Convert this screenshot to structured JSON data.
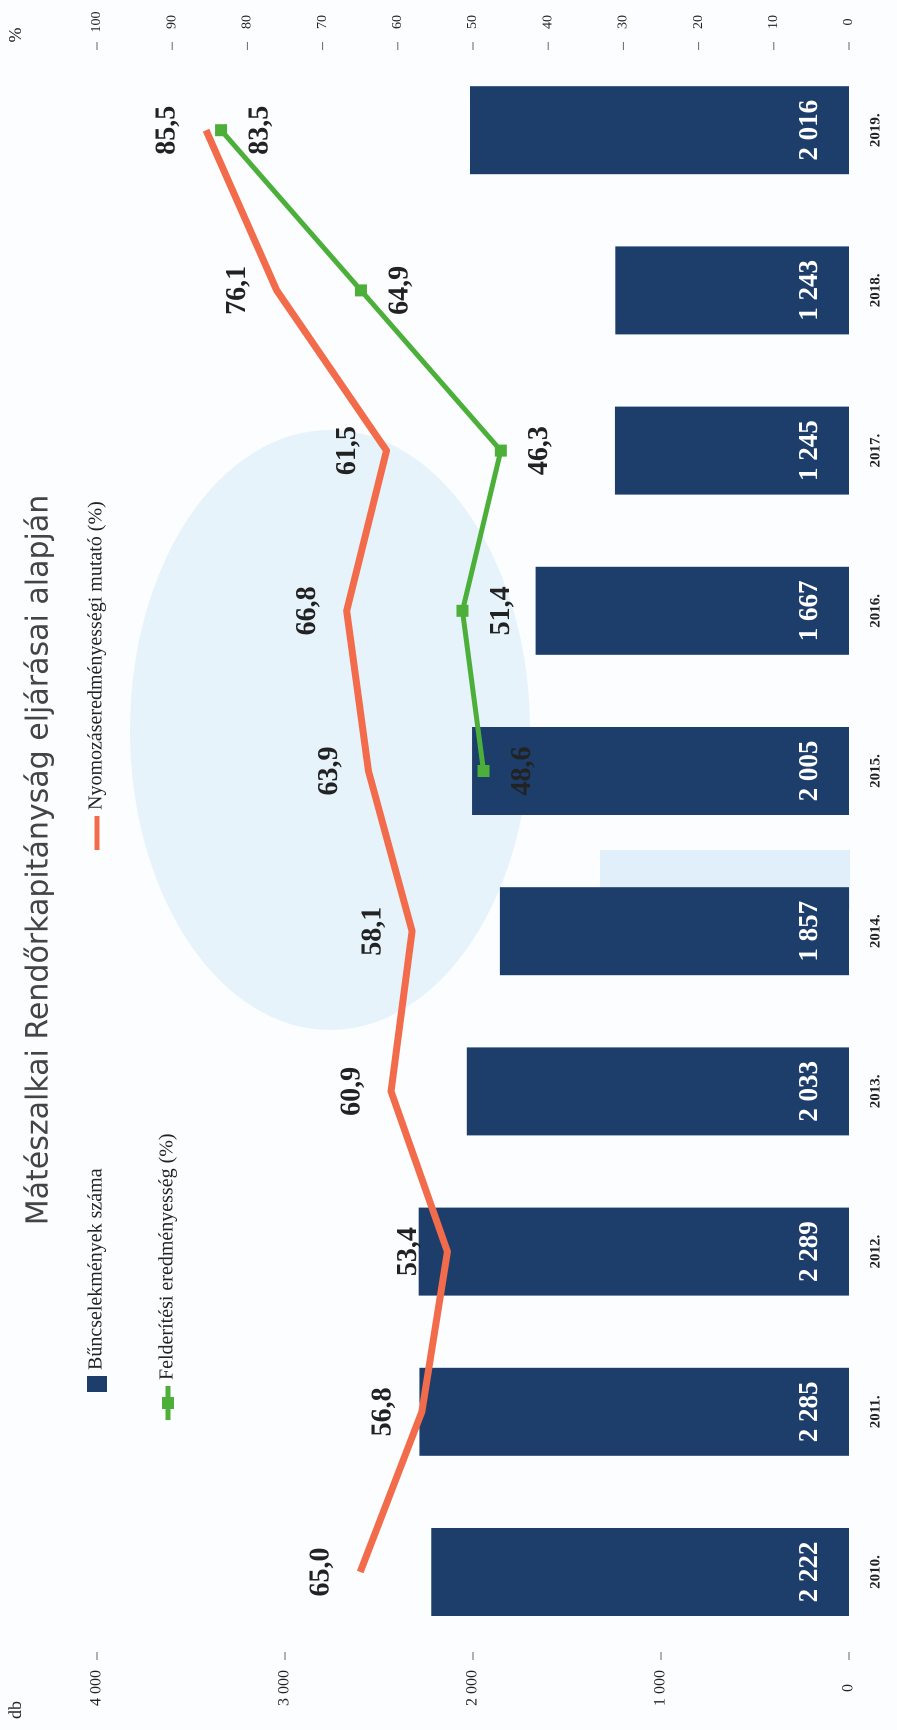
{
  "chart_data": {
    "type": "bar",
    "title": "Mátészalkai Rendőrkapitányság eljárásai alapján",
    "y_label": "db",
    "y2_label": "%",
    "categories": [
      "2010.",
      "2011.",
      "2012.",
      "2013.",
      "2014.",
      "2015.",
      "2016.",
      "2017.",
      "2018.",
      "2019."
    ],
    "series": [
      {
        "name": "Bűncselekmények száma",
        "type": "bar",
        "color": "#1d3d6b",
        "axis": "y",
        "values": [
          2222,
          2285,
          2289,
          2033,
          1857,
          2005,
          1667,
          1245,
          1243,
          2016
        ],
        "value_labels": [
          "2 222",
          "2 285",
          "2 289",
          "2 033",
          "1 857",
          "2 005",
          "1 667",
          "1 245",
          "1 243",
          "2 016"
        ]
      },
      {
        "name": "Felderítési eredményesség (%)",
        "type": "line",
        "color": "#4caf3a",
        "axis": "y2",
        "values": [
          null,
          null,
          null,
          null,
          null,
          48.6,
          51.4,
          46.3,
          64.9,
          83.5
        ],
        "value_labels": [
          null,
          null,
          null,
          null,
          null,
          "48,6",
          "51,4",
          "46,3",
          "64,9",
          "83,5"
        ]
      },
      {
        "name": "Nyomozáseredményességi mutató (%)",
        "type": "line",
        "color": "#f26b4a",
        "axis": "y2",
        "values": [
          65.0,
          56.8,
          53.4,
          60.9,
          58.1,
          63.9,
          66.8,
          61.5,
          76.1,
          85.5
        ],
        "value_labels": [
          "65,0",
          "56,8",
          "53,4",
          "60,9",
          "58,1",
          "63,9",
          "66,8",
          "61,5",
          "76,1",
          "85,5"
        ]
      }
    ],
    "ylim": [
      0,
      4000
    ],
    "yticks": [
      0,
      {
        "value": 1000,
        "label": "1 000"
      },
      {
        "value": 2000,
        "label": "2 000"
      },
      {
        "value": 3000,
        "label": "3 000"
      },
      {
        "value": 4000,
        "label": "4 000"
      }
    ],
    "y2lim": [
      0,
      100
    ],
    "y2ticks": [
      0,
      10,
      20,
      30,
      40,
      50,
      60,
      70,
      80,
      90,
      100
    ]
  }
}
